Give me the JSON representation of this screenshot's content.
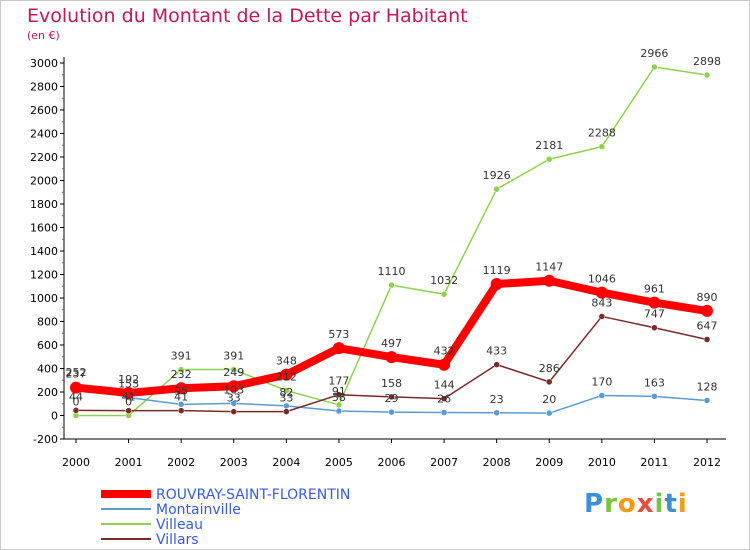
{
  "title": "Evolution du Montant de la Dette par Habitant",
  "subtitle": "(en €)",
  "logo_text": "Proxiti",
  "chart_data": {
    "type": "line",
    "x": [
      "2000",
      "2001",
      "2002",
      "2003",
      "2004",
      "2005",
      "2006",
      "2007",
      "2008",
      "2009",
      "2010",
      "2011",
      "2012"
    ],
    "ylim": [
      -200,
      3000
    ],
    "yticks": [
      -200,
      0,
      200,
      400,
      600,
      800,
      1000,
      1200,
      1400,
      1600,
      1800,
      2000,
      2200,
      2400,
      2600,
      2800,
      3000
    ],
    "grid": false,
    "legend_position": "bottom-left",
    "series": [
      {
        "name": "ROUVRAY-SAINT-FLORENTIN",
        "color": "#ff0000",
        "width": 8,
        "values": [
          237,
          192,
          232,
          249,
          348,
          573,
          497,
          432,
          1119,
          1147,
          1046,
          961,
          890
        ]
      },
      {
        "name": "Montainville",
        "color": "#5b9bd5",
        "width": 1.5,
        "values": [
          252,
          153,
          95,
          103,
          82,
          38,
          29,
          26,
          23,
          20,
          170,
          163,
          128
        ]
      },
      {
        "name": "Villeau",
        "color": "#8fd14f",
        "width": 1.5,
        "values": [
          0,
          0,
          391,
          391,
          212,
          91,
          1110,
          1032,
          1926,
          2181,
          2288,
          2966,
          2898
        ]
      },
      {
        "name": "Villars",
        "color": "#7b2a2a",
        "width": 1.5,
        "values": [
          44,
          41,
          41,
          33,
          33,
          177,
          158,
          144,
          433,
          286,
          843,
          747,
          647
        ]
      }
    ],
    "labels": [
      {
        "series": 0,
        "values": [
          "237",
          "192",
          "232",
          "249",
          "348",
          "573",
          "497",
          "432",
          "1119",
          "1147",
          "1046",
          "961",
          "890"
        ]
      },
      {
        "series": 1,
        "values": [
          "252",
          "153",
          "95",
          "103",
          "82",
          "38",
          "29",
          "26",
          "23",
          "20",
          "170",
          "163",
          "128"
        ]
      },
      {
        "series": 2,
        "values": [
          "0",
          "0",
          "391",
          "391",
          "212",
          "91",
          "1110",
          "1032",
          "1926",
          "2181",
          "2288",
          "2966",
          "2898"
        ]
      },
      {
        "series": 3,
        "values": [
          "44",
          "41",
          "41",
          "33",
          "33",
          "177",
          "158",
          "144",
          "433",
          "286",
          "843",
          "747",
          "647"
        ]
      }
    ]
  }
}
